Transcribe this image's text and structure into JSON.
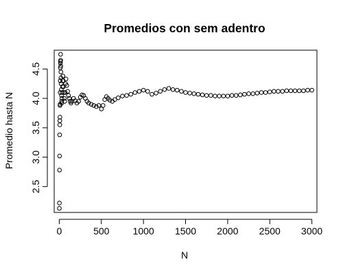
{
  "chart_data": {
    "type": "scatter",
    "title": "Promedios con sem adentro",
    "xlabel": "N",
    "ylabel": "Promedio hasta N",
    "xlim": [
      -60,
      3060
    ],
    "ylim": [
      2.06,
      4.82
    ],
    "x_ticks": [
      0,
      500,
      1000,
      1500,
      2000,
      2500,
      3000
    ],
    "y_ticks": [
      2.5,
      3.0,
      3.5,
      4.0,
      4.5
    ],
    "x_tick_labels": [
      "0",
      "500",
      "1000",
      "1500",
      "2000",
      "2500",
      "3000"
    ],
    "y_tick_labels": [
      "2.5",
      "3.0",
      "3.5",
      "4.0",
      "4.5"
    ],
    "marker": "open-circle",
    "grid": false,
    "legend": "none",
    "series": [
      {
        "x": [
          1,
          2,
          3,
          4,
          5,
          6,
          7,
          8,
          9,
          10,
          11,
          12,
          13,
          14,
          15,
          16,
          17,
          18,
          19,
          20,
          22,
          24,
          26,
          28,
          30,
          32,
          35,
          38,
          41,
          44,
          47,
          50,
          55,
          60,
          65,
          70,
          75,
          80,
          90,
          100,
          110,
          120,
          130,
          140,
          150,
          170,
          190,
          210,
          230,
          250,
          270,
          290,
          310,
          330,
          350,
          380,
          410,
          440,
          470,
          500,
          520,
          540,
          560,
          580,
          600,
          630,
          660,
          700,
          750,
          800,
          850,
          900,
          950,
          1000,
          1050,
          1100,
          1150,
          1200,
          1250,
          1300,
          1350,
          1400,
          1450,
          1500,
          1550,
          1600,
          1650,
          1700,
          1750,
          1800,
          1850,
          1900,
          1950,
          2000,
          2050,
          2100,
          2150,
          2200,
          2250,
          2300,
          2350,
          2400,
          2450,
          2500,
          2550,
          2600,
          2650,
          2700,
          2750,
          2800,
          2850,
          2900,
          2950,
          3000
        ],
        "y": [
          2.13,
          2.22,
          2.78,
          3.02,
          3.38,
          3.55,
          3.62,
          3.68,
          3.88,
          3.9,
          4.1,
          4.3,
          4.52,
          4.6,
          4.63,
          4.75,
          4.65,
          4.55,
          4.45,
          4.35,
          4.25,
          4.15,
          4.05,
          3.95,
          3.92,
          4.0,
          4.1,
          4.2,
          4.3,
          4.38,
          4.3,
          4.2,
          4.1,
          4.0,
          3.95,
          4.1,
          4.25,
          4.33,
          4.22,
          4.12,
          4.05,
          4.0,
          3.95,
          3.92,
          3.95,
          4.0,
          3.96,
          3.92,
          3.95,
          4.02,
          4.06,
          4.05,
          4.0,
          3.95,
          3.92,
          3.9,
          3.88,
          3.86,
          3.88,
          3.82,
          3.88,
          3.98,
          4.03,
          4.0,
          3.97,
          3.95,
          3.98,
          4.01,
          4.04,
          4.05,
          4.07,
          4.1,
          4.12,
          4.14,
          4.12,
          4.07,
          4.09,
          4.12,
          4.15,
          4.17,
          4.15,
          4.14,
          4.12,
          4.1,
          4.09,
          4.08,
          4.07,
          4.06,
          4.05,
          4.05,
          4.04,
          4.04,
          4.04,
          4.04,
          4.05,
          4.05,
          4.06,
          4.07,
          4.08,
          4.08,
          4.09,
          4.1,
          4.1,
          4.11,
          4.12,
          4.12,
          4.12,
          4.13,
          4.13,
          4.13,
          4.13,
          4.13,
          4.14,
          4.14
        ]
      }
    ]
  }
}
